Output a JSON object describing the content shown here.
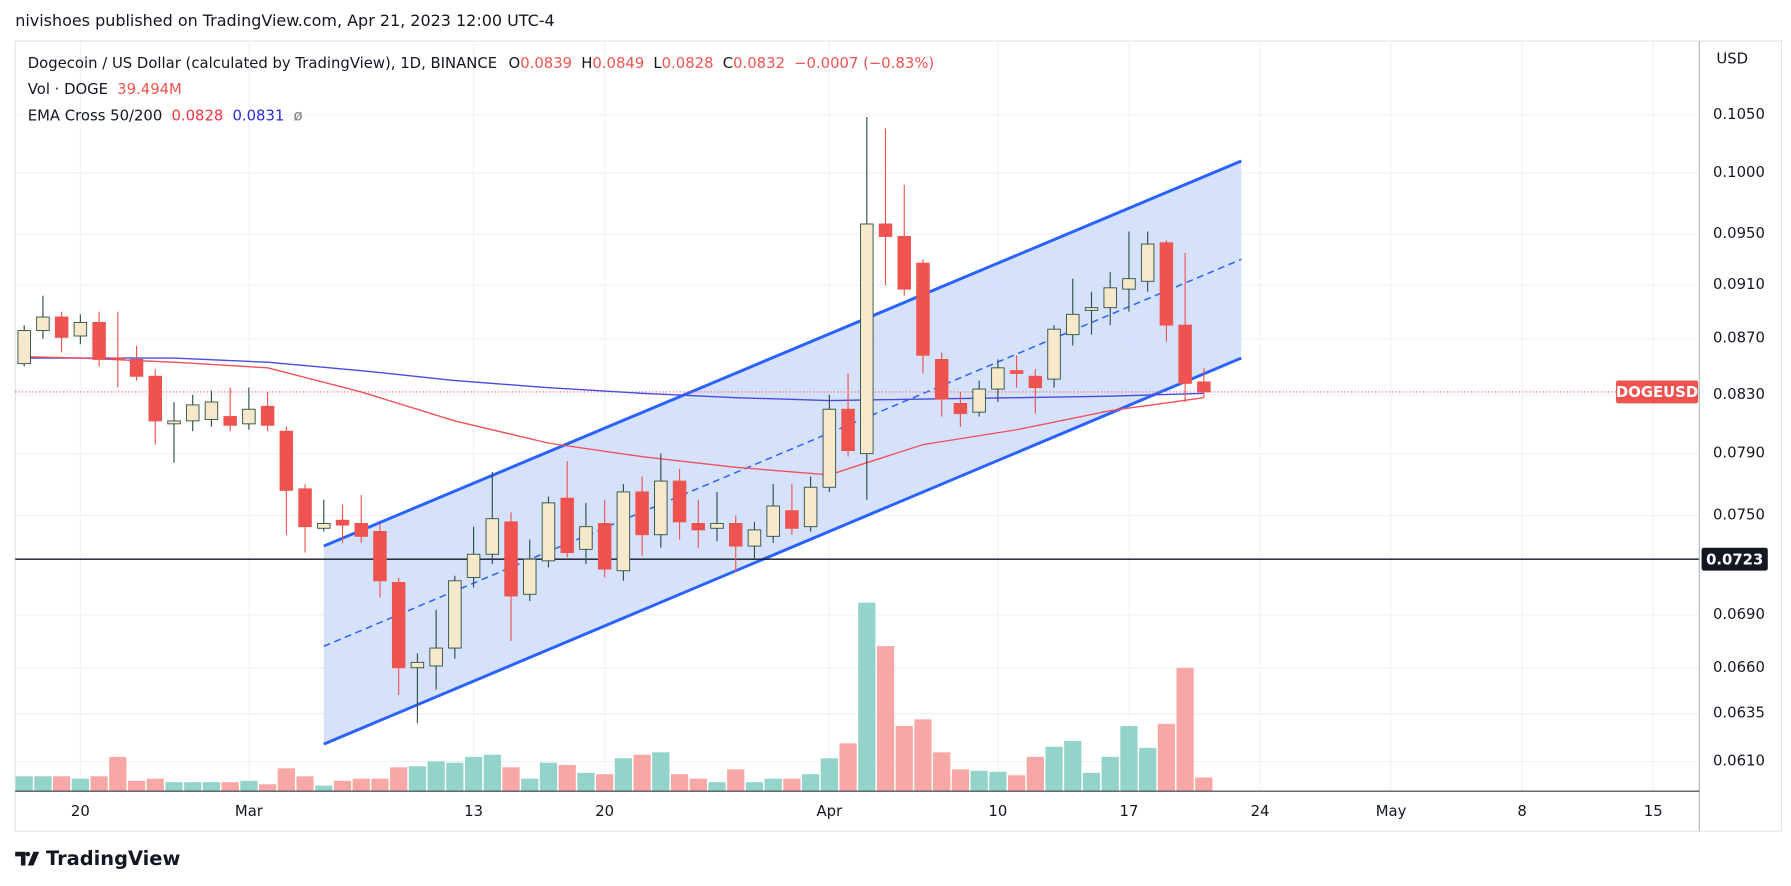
{
  "header": "nivishoes published on TradingView.com, Apr 21, 2023 12:00 UTC-4",
  "footer_brand": "TradingView",
  "chart_data": {
    "type": "candlestick",
    "title": "Dogecoin / US Dollar (calculated by TradingView), 1D, BINANCE",
    "ohlc_legend": [
      {
        "label": "O",
        "value": 0.0839
      },
      {
        "label": "H",
        "value": 0.0849
      },
      {
        "label": "L",
        "value": 0.0828
      },
      {
        "label": "C",
        "value": 0.0832
      }
    ],
    "change_label": "−0.0007 (−0.83%)",
    "volume_legend": {
      "name": "Vol · DOGE",
      "value": 39.494,
      "value_label": "39.494M"
    },
    "ema_legend": {
      "name": "EMA Cross 50/200",
      "values": [
        0.0828,
        0.0831
      ],
      "colors": [
        "#f23645",
        "#2a2ad6"
      ],
      "symbol": "ø"
    },
    "y_axis_label": "USD",
    "x": [
      -3,
      -2,
      -1,
      0,
      1,
      2,
      3,
      4,
      5,
      6,
      7,
      8,
      9,
      10,
      11,
      12,
      13,
      14,
      15,
      16,
      17,
      18,
      19,
      20,
      21,
      22,
      23,
      24,
      25,
      26,
      27,
      28,
      29,
      30,
      31,
      32,
      33,
      34,
      35,
      36,
      37,
      38,
      39,
      40,
      41,
      42,
      43,
      44,
      45,
      46,
      47,
      48,
      49,
      50,
      51,
      52,
      53,
      54,
      55,
      56,
      57,
      58,
      59,
      60
    ],
    "open": [
      0.0852,
      0.0876,
      0.0886,
      0.0872,
      0.0882,
      0.0856,
      0.0855,
      0.0843,
      0.081,
      0.0812,
      0.0813,
      0.0815,
      0.081,
      0.0822,
      0.0805,
      0.0767,
      0.0742,
      0.0747,
      0.0745,
      0.074,
      0.0709,
      0.066,
      0.0661,
      0.0671,
      0.0712,
      0.0726,
      0.0746,
      0.0702,
      0.0722,
      0.0761,
      0.0729,
      0.0745,
      0.0716,
      0.0765,
      0.0738,
      0.0772,
      0.0745,
      0.0742,
      0.0745,
      0.0731,
      0.0737,
      0.0753,
      0.0743,
      0.0768,
      0.082,
      0.079,
      0.0958,
      0.0948,
      0.0927,
      0.0855,
      0.0824,
      0.0818,
      0.0834,
      0.0847,
      0.0843,
      0.0841,
      0.0873,
      0.0891,
      0.0893,
      0.0907,
      0.0913,
      0.0943,
      0.088,
      0.0839
    ],
    "high": [
      0.088,
      0.0902,
      0.089,
      0.0888,
      0.089,
      0.089,
      0.0865,
      0.0848,
      0.0825,
      0.083,
      0.0833,
      0.0835,
      0.0835,
      0.0832,
      0.0808,
      0.077,
      0.076,
      0.0757,
      0.0763,
      0.0745,
      0.0712,
      0.0668,
      0.0693,
      0.0713,
      0.0743,
      0.0778,
      0.0752,
      0.0735,
      0.0762,
      0.0785,
      0.0758,
      0.076,
      0.077,
      0.0775,
      0.079,
      0.078,
      0.076,
      0.0765,
      0.075,
      0.0746,
      0.077,
      0.077,
      0.0775,
      0.083,
      0.0845,
      0.1048,
      0.1038,
      0.099,
      0.093,
      0.086,
      0.0832,
      0.084,
      0.0855,
      0.0858,
      0.0848,
      0.088,
      0.0915,
      0.0905,
      0.092,
      0.0952,
      0.0952,
      0.0945,
      0.0935,
      0.0849
    ],
    "low": [
      0.085,
      0.087,
      0.086,
      0.0866,
      0.085,
      0.0835,
      0.084,
      0.0796,
      0.0784,
      0.0805,
      0.0808,
      0.0805,
      0.0806,
      0.0805,
      0.0738,
      0.0727,
      0.074,
      0.0733,
      0.0733,
      0.07,
      0.0645,
      0.063,
      0.0648,
      0.0665,
      0.0706,
      0.072,
      0.0675,
      0.0698,
      0.0718,
      0.0724,
      0.072,
      0.0712,
      0.071,
      0.0725,
      0.073,
      0.0735,
      0.073,
      0.0734,
      0.0715,
      0.0723,
      0.0733,
      0.0738,
      0.074,
      0.0765,
      0.0788,
      0.076,
      0.091,
      0.0902,
      0.0845,
      0.0815,
      0.0808,
      0.0815,
      0.0825,
      0.0835,
      0.0817,
      0.0835,
      0.0865,
      0.0873,
      0.088,
      0.089,
      0.0905,
      0.0868,
      0.0825,
      0.0828
    ],
    "close": [
      0.0876,
      0.0886,
      0.0871,
      0.0882,
      0.0855,
      0.0855,
      0.0843,
      0.0812,
      0.0812,
      0.0823,
      0.0825,
      0.0809,
      0.082,
      0.0809,
      0.0766,
      0.0743,
      0.0745,
      0.0744,
      0.0737,
      0.071,
      0.066,
      0.0663,
      0.0671,
      0.071,
      0.0726,
      0.0748,
      0.0701,
      0.0723,
      0.0758,
      0.0727,
      0.0743,
      0.0717,
      0.0765,
      0.0738,
      0.0772,
      0.0746,
      0.0741,
      0.0745,
      0.0731,
      0.0741,
      0.0756,
      0.0742,
      0.0768,
      0.082,
      0.0792,
      0.0958,
      0.0948,
      0.0907,
      0.0858,
      0.0827,
      0.0817,
      0.0834,
      0.0849,
      0.0845,
      0.0835,
      0.0877,
      0.0888,
      0.0893,
      0.0908,
      0.0915,
      0.0942,
      0.088,
      0.0838,
      0.0832
    ],
    "volume": [
      43,
      43,
      43,
      36,
      43,
      99,
      30,
      36,
      26,
      26,
      26,
      26,
      30,
      20,
      66,
      43,
      16,
      30,
      36,
      36,
      69,
      72,
      86,
      82,
      99,
      105,
      69,
      36,
      82,
      76,
      53,
      49,
      95,
      105,
      112,
      49,
      36,
      26,
      63,
      26,
      36,
      36,
      49,
      95,
      138,
      543,
      418,
      188,
      207,
      112,
      63,
      59,
      56,
      46,
      99,
      128,
      145,
      53,
      99,
      188,
      125,
      194,
      355,
      39.494
    ],
    "volume_lim": [
      0,
      2160
    ],
    "up_color": "#f6e8cb",
    "up_border": "#2e5244",
    "down_color": "#ef5350",
    "volume_up_color": "#93d3c9",
    "volume_down_color": "#f7a8a6",
    "lines": [
      {
        "color": "#4a4ae0",
        "x": [
          -3,
          5,
          10,
          15,
          20,
          25,
          30,
          35,
          40,
          45,
          50,
          55,
          60
        ],
        "values": [
          0.0856,
          0.0856,
          0.0853,
          0.0847,
          0.084,
          0.0835,
          0.0831,
          0.0828,
          0.0826,
          0.0827,
          0.0828,
          0.0829,
          0.0831
        ]
      },
      {
        "color": "#f0505a",
        "x": [
          -3,
          0,
          5,
          10,
          15,
          20,
          25,
          30,
          35,
          40,
          42,
          45,
          50,
          55,
          60
        ],
        "values": [
          0.0857,
          0.0856,
          0.0853,
          0.0849,
          0.0832,
          0.0812,
          0.0797,
          0.0788,
          0.0781,
          0.0776,
          0.0784,
          0.0796,
          0.0806,
          0.0819,
          0.0828
        ]
      }
    ],
    "channel": {
      "color": "#2962ff",
      "fill": "#cfdcfc",
      "x": [
        13,
        62
      ],
      "upper": [
        0.0731,
        0.101
      ],
      "middle": [
        0.0672,
        0.093
      ],
      "lower": [
        0.0619,
        0.0856
      ]
    },
    "hline": {
      "value": 0.0723,
      "label": "0.0723",
      "color": "#131722"
    },
    "last_price": {
      "value": 0.0832,
      "label": "DOGEUSD",
      "color": "#ef5350"
    },
    "log_scale": true,
    "grid": true,
    "ylim": [
      0.0595,
      0.1117
    ],
    "yticks": [
      {
        "value": 0.105,
        "label": "0.1050"
      },
      {
        "value": 0.1,
        "label": "0.1000"
      },
      {
        "value": 0.095,
        "label": "0.0950"
      },
      {
        "value": 0.091,
        "label": "0.0910"
      },
      {
        "value": 0.087,
        "label": "0.0870"
      },
      {
        "value": 0.083,
        "label": "0.0830"
      },
      {
        "value": 0.079,
        "label": "0.0790"
      },
      {
        "value": 0.075,
        "label": "0.0750"
      },
      {
        "value": 0.069,
        "label": "0.0690"
      },
      {
        "value": 0.066,
        "label": "0.0660"
      },
      {
        "value": 0.0635,
        "label": "0.0635"
      },
      {
        "value": 0.061,
        "label": "0.0610"
      }
    ],
    "xlim": [
      -3.48,
      86.46
    ],
    "xticks": [
      {
        "value": 0,
        "label": "20"
      },
      {
        "value": 9,
        "label": "Mar"
      },
      {
        "value": 21,
        "label": "13"
      },
      {
        "value": 28,
        "label": "20"
      },
      {
        "value": 40,
        "label": "Apr"
      },
      {
        "value": 49,
        "label": "10"
      },
      {
        "value": 56,
        "label": "17"
      },
      {
        "value": 63,
        "label": "24"
      },
      {
        "value": 70,
        "label": "May"
      },
      {
        "value": 77,
        "label": "8"
      },
      {
        "value": 84,
        "label": "15"
      }
    ]
  }
}
